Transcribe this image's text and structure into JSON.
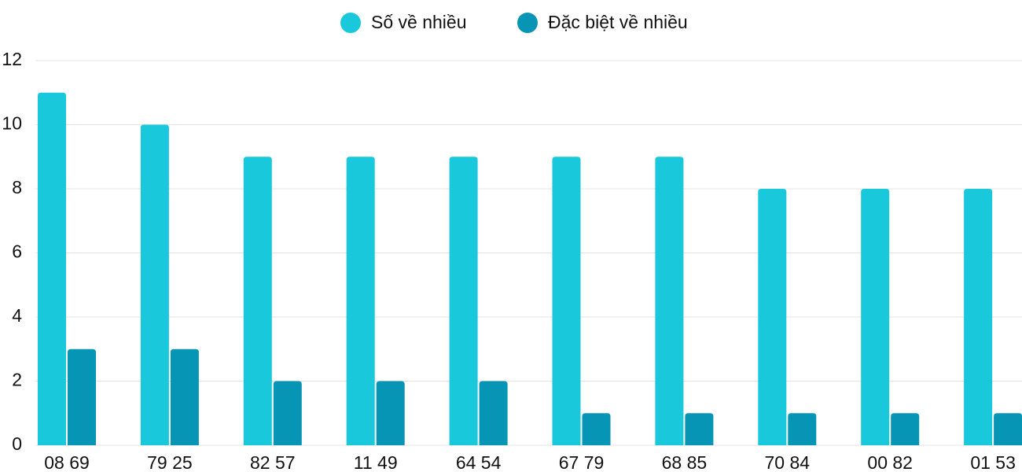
{
  "chart_data": {
    "type": "bar",
    "categories": [
      "08 69",
      "79 25",
      "82 57",
      "11 49",
      "64 54",
      "67 79",
      "68 85",
      "70 84",
      "00 82",
      "01 53"
    ],
    "series": [
      {
        "name": "Số về nhiều",
        "color": "#1ac8db",
        "values": [
          11,
          10,
          9,
          9,
          9,
          9,
          9,
          8,
          8,
          8
        ]
      },
      {
        "name": "Đặc biệt về nhiều",
        "color": "#0795b5",
        "values": [
          3,
          3,
          2,
          2,
          2,
          1,
          1,
          1,
          1,
          1
        ]
      }
    ],
    "ylim": [
      0,
      12
    ],
    "yticks": [
      0,
      2,
      4,
      6,
      8,
      10,
      12
    ],
    "grid": true,
    "legend": "top"
  }
}
